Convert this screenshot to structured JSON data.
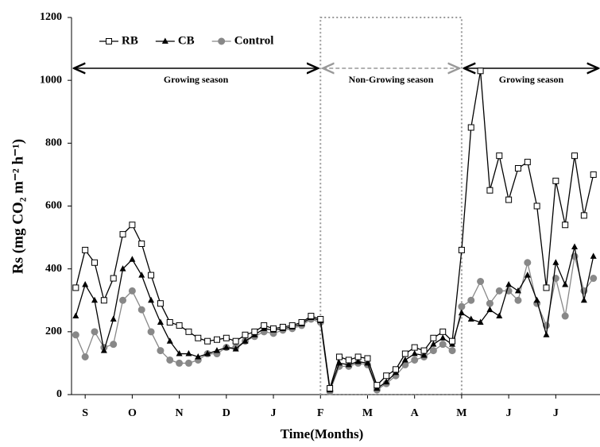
{
  "chart_data": {
    "type": "line",
    "ylabel": "Rs (mg CO₂ m⁻² h⁻¹)",
    "xlabel": "Time(Months)",
    "annotations": [
      "Growing season",
      "Non-Growing season",
      "Growing season"
    ],
    "xlim": [
      -0.29,
      10.94
    ],
    "xticks": [
      {
        "value": 0,
        "label": "S"
      },
      {
        "value": 1,
        "label": "O"
      },
      {
        "value": 2,
        "label": "N"
      },
      {
        "value": 3,
        "label": "D"
      },
      {
        "value": 4,
        "label": "J"
      },
      {
        "value": 5,
        "label": "F"
      },
      {
        "value": 6,
        "label": "M"
      },
      {
        "value": 7,
        "label": "A"
      },
      {
        "value": 8,
        "label": "M"
      },
      {
        "value": 9,
        "label": "J"
      },
      {
        "value": 10,
        "label": "J"
      }
    ],
    "ylim": [
      0,
      1200
    ],
    "yticks": [
      0,
      200,
      400,
      600,
      800,
      1000,
      1200
    ],
    "x": [
      -0.2,
      0,
      0.2,
      0.4,
      0.6,
      0.8,
      1.0,
      1.2,
      1.4,
      1.6,
      1.8,
      2.0,
      2.2,
      2.4,
      2.6,
      2.8,
      3.0,
      3.2,
      3.4,
      3.6,
      3.8,
      4.0,
      4.2,
      4.4,
      4.6,
      4.8,
      5.0,
      5.2,
      5.4,
      5.6,
      5.8,
      6.0,
      6.2,
      6.4,
      6.6,
      6.8,
      7.0,
      7.2,
      7.4,
      7.6,
      7.8,
      8.0,
      8.2,
      8.4,
      8.6,
      8.8,
      9.0,
      9.2,
      9.4,
      9.6,
      9.8,
      10.0,
      10.2,
      10.4,
      10.6,
      10.8
    ],
    "series": [
      {
        "name": "RB",
        "color": "#000000",
        "marker": "square-open",
        "values": [
          340,
          460,
          420,
          300,
          370,
          510,
          540,
          480,
          380,
          290,
          230,
          220,
          200,
          180,
          170,
          175,
          180,
          170,
          190,
          200,
          220,
          210,
          215,
          220,
          230,
          250,
          240,
          20,
          120,
          110,
          120,
          115,
          30,
          60,
          80,
          130,
          150,
          140,
          180,
          200,
          170,
          460,
          850,
          1030,
          650,
          760,
          620,
          720,
          740,
          600,
          340,
          680,
          540,
          760,
          570,
          700
        ]
      },
      {
        "name": "CB",
        "color": "#000000",
        "marker": "triangle",
        "values": [
          250,
          350,
          300,
          140,
          240,
          400,
          430,
          380,
          300,
          230,
          170,
          130,
          130,
          120,
          130,
          140,
          150,
          145,
          170,
          190,
          210,
          205,
          210,
          215,
          225,
          245,
          235,
          15,
          100,
          95,
          105,
          100,
          20,
          40,
          70,
          110,
          130,
          125,
          160,
          180,
          160,
          260,
          240,
          230,
          270,
          250,
          350,
          330,
          380,
          300,
          190,
          420,
          350,
          470,
          300,
          440
        ]
      },
      {
        "name": "Control",
        "color": "#888888",
        "marker": "circle",
        "values": [
          190,
          120,
          200,
          150,
          160,
          300,
          330,
          270,
          200,
          140,
          110,
          100,
          100,
          110,
          130,
          130,
          150,
          150,
          170,
          185,
          200,
          195,
          205,
          210,
          220,
          240,
          230,
          10,
          90,
          90,
          100,
          95,
          15,
          35,
          60,
          95,
          110,
          120,
          140,
          160,
          140,
          280,
          300,
          360,
          290,
          330,
          330,
          300,
          420,
          290,
          220,
          370,
          250,
          440,
          330,
          370
        ]
      }
    ]
  }
}
